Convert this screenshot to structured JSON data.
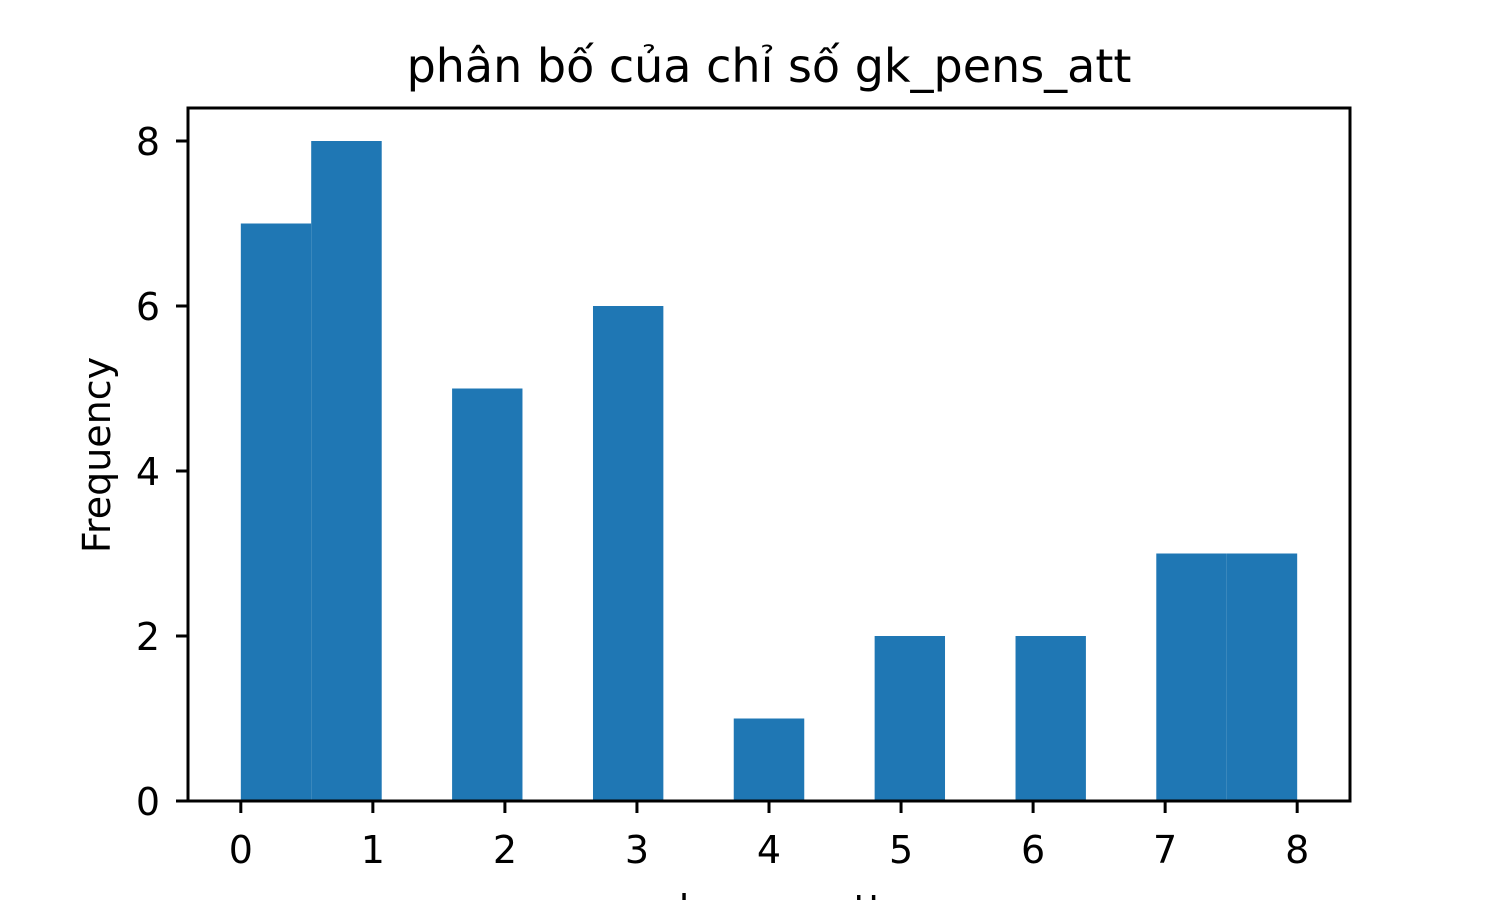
{
  "chart_data": {
    "type": "bar",
    "title": "phân bố của chỉ số gk_pens_att",
    "xlabel": "gk_pens_att",
    "ylabel": "Frequency",
    "xlim": [
      -0.4,
      8.4
    ],
    "ylim": [
      0,
      8.4
    ],
    "xticks": [
      "0",
      "1",
      "2",
      "3",
      "4",
      "5",
      "6",
      "7",
      "8"
    ],
    "yticks": [
      "0",
      "2",
      "4",
      "6",
      "8"
    ],
    "bins": [
      {
        "x0": 0.0,
        "x1": 0.533,
        "count": 7
      },
      {
        "x0": 0.533,
        "x1": 1.067,
        "count": 8
      },
      {
        "x0": 1.6,
        "x1": 2.133,
        "count": 5
      },
      {
        "x0": 2.667,
        "x1": 3.2,
        "count": 6
      },
      {
        "x0": 3.733,
        "x1": 4.267,
        "count": 1
      },
      {
        "x0": 4.8,
        "x1": 5.333,
        "count": 2
      },
      {
        "x0": 5.867,
        "x1": 6.4,
        "count": 2
      },
      {
        "x0": 6.933,
        "x1": 7.467,
        "count": 3
      },
      {
        "x0": 7.467,
        "x1": 8.0,
        "count": 3
      }
    ],
    "bar_color": "#1f77b4",
    "grid": false,
    "legend": "none"
  }
}
